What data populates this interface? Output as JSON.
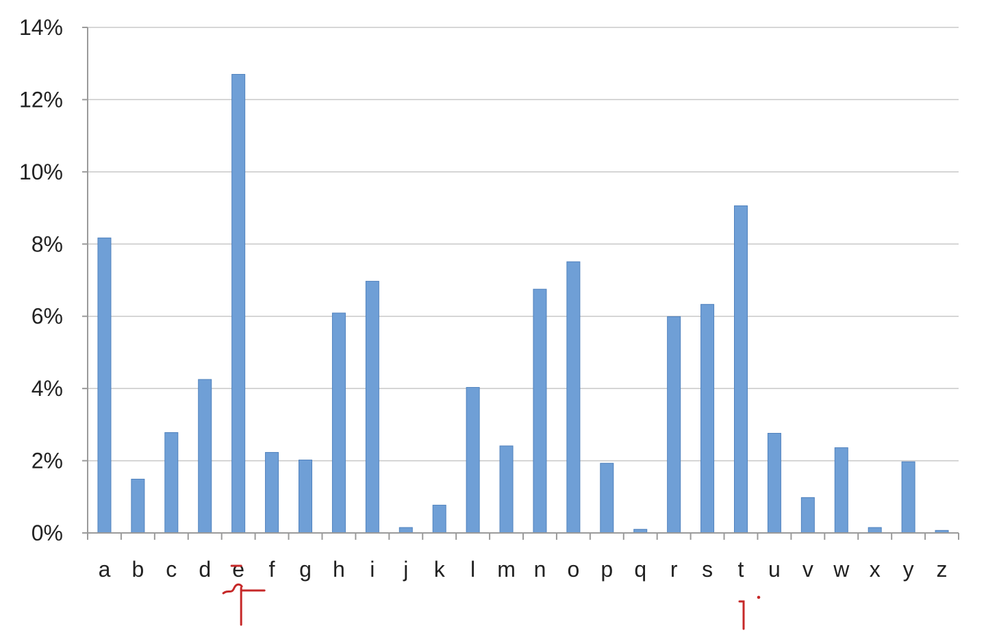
{
  "chart_data": {
    "type": "bar",
    "title": "",
    "xlabel": "",
    "ylabel": "",
    "ylim": [
      0,
      14
    ],
    "y_ticks": [
      0,
      2,
      4,
      6,
      8,
      10,
      12,
      14
    ],
    "y_tick_labels": [
      "0%",
      "2%",
      "4%",
      "6%",
      "8%",
      "10%",
      "12%",
      "14%"
    ],
    "grid": true,
    "legend": "none",
    "bar_color": "#6f9fd6",
    "categories": [
      "a",
      "b",
      "c",
      "d",
      "e",
      "f",
      "g",
      "h",
      "i",
      "j",
      "k",
      "l",
      "m",
      "n",
      "o",
      "p",
      "q",
      "r",
      "s",
      "t",
      "u",
      "v",
      "w",
      "x",
      "y",
      "z"
    ],
    "values": [
      8.17,
      1.49,
      2.78,
      4.25,
      12.7,
      2.23,
      2.02,
      6.09,
      6.97,
      0.15,
      0.77,
      4.03,
      2.41,
      6.75,
      7.51,
      1.93,
      0.1,
      5.99,
      6.33,
      9.06,
      2.76,
      0.98,
      2.36,
      0.15,
      1.97,
      0.07
    ]
  },
  "annotations": {
    "ink_color": "#c62828",
    "marked_categories": [
      "e",
      "t"
    ]
  }
}
